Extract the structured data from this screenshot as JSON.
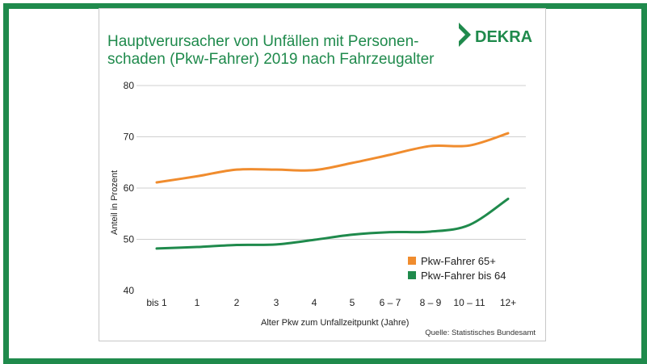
{
  "chart_data": {
    "type": "line",
    "title_lines": [
      "Hauptverursacher von Unfällen mit Personen-",
      "schaden (Pkw-Fahrer) 2019 nach Fahrzeugalter"
    ],
    "brand": "DEKRA",
    "xlabel": "Alter Pkw zum Unfallzeitpunkt (Jahre)",
    "ylabel": "Anteil in Prozent",
    "categories": [
      "bis 1",
      "1",
      "2",
      "3",
      "4",
      "5",
      "6 – 7",
      "8 – 9",
      "10 – 11",
      "12+"
    ],
    "ylim": [
      40,
      80
    ],
    "yticks": [
      40,
      50,
      60,
      70,
      80
    ],
    "grid": true,
    "legend_position": "bottom-right",
    "series": [
      {
        "name": "Pkw-Fahrer 65+",
        "color": "#f08c2e",
        "values": [
          61.1,
          62.3,
          63.6,
          63.6,
          63.5,
          64.9,
          66.5,
          68.2,
          68.3,
          70.7
        ]
      },
      {
        "name": "Pkw-Fahrer bis 64",
        "color": "#1f8a4c",
        "values": [
          48.2,
          48.5,
          48.9,
          49.0,
          49.9,
          50.9,
          51.4,
          51.5,
          52.8,
          57.9
        ]
      }
    ],
    "source": "Quelle: Statistisches Bundesamt"
  },
  "colors": {
    "frame": "#1f8a4c",
    "title": "#1f8a4c",
    "grid": "#cfcfcf"
  }
}
